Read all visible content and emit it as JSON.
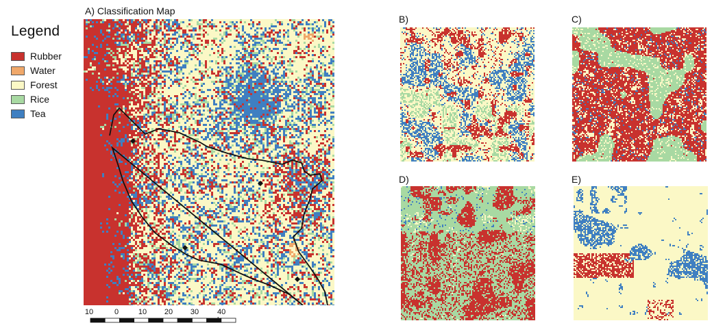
{
  "legend": {
    "title": "Legend",
    "items": [
      {
        "label": "Rubber",
        "color": "#c8322e"
      },
      {
        "label": "Water",
        "color": "#f0a86a"
      },
      {
        "label": "Forest",
        "color": "#fbf8c6"
      },
      {
        "label": "Rice",
        "color": "#a8d9a2"
      },
      {
        "label": "Tea",
        "color": "#3f7fc1"
      }
    ]
  },
  "main_map": {
    "title": "A) Classification Map"
  },
  "scalebar": {
    "ticks": [
      "10",
      "0",
      "10",
      "20",
      "30",
      "40 km"
    ]
  },
  "panels": [
    {
      "label": "B)",
      "dominant": "Forest"
    },
    {
      "label": "C)",
      "dominant": "Rubber"
    },
    {
      "label": "D)",
      "dominant": "Rice"
    },
    {
      "label": "E)",
      "dominant": "Forest"
    }
  ]
}
